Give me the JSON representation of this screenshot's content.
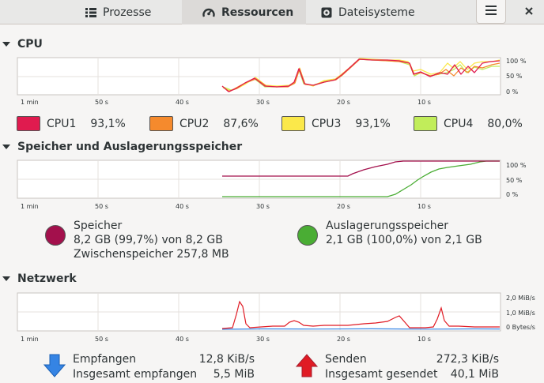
{
  "tabs": [
    {
      "label": "Prozesse",
      "icon": "list-icon",
      "active": false
    },
    {
      "label": "Ressourcen",
      "icon": "gauge-icon",
      "active": true
    },
    {
      "label": "Dateisysteme",
      "icon": "disk-icon",
      "active": false
    }
  ],
  "cpu": {
    "title": "CPU",
    "time_labels": [
      "1 min",
      "50 s",
      "40 s",
      "30 s",
      "20 s",
      "10 s"
    ],
    "y_labels": [
      "100 %",
      "50 %",
      "0 %"
    ],
    "cores": [
      {
        "name": "CPU1",
        "value": "93,1%",
        "color": "#e01b4f"
      },
      {
        "name": "CPU2",
        "value": "87,6%",
        "color": "#f58a2d"
      },
      {
        "name": "CPU3",
        "value": "93,1%",
        "color": "#fbe84a"
      },
      {
        "name": "CPU4",
        "value": "80,0%",
        "color": "#c1ed5a"
      }
    ]
  },
  "memory": {
    "title": "Speicher und Auslagerungsspeicher",
    "time_labels": [
      "1 min",
      "50 s",
      "40 s",
      "30 s",
      "20 s",
      "10 s"
    ],
    "y_labels": [
      "100 %",
      "50 %",
      "0 %"
    ],
    "ram": {
      "label": "Speicher",
      "usage": "8,2 GB (99,7%) von 8,2 GB",
      "cache": "Zwischenspeicher 257,8 MB",
      "color": "#a3104c"
    },
    "swap": {
      "label": "Auslagerungsspeicher",
      "usage": "2,1 GB (100,0%) von 2,1 GB",
      "color": "#4aad34"
    }
  },
  "network": {
    "title": "Netzwerk",
    "time_labels": [
      "1 min",
      "50 s",
      "40 s",
      "30 s",
      "20 s",
      "10 s"
    ],
    "y_labels": [
      "2,0 MiB/s",
      "1,0 MiB/s",
      "0 Bytes/s"
    ],
    "receive": {
      "label": "Empfangen",
      "rate": "12,8 KiB/s",
      "total_label": "Insgesamt empfangen",
      "total": "5,5 MiB",
      "color": "#3584e4"
    },
    "send": {
      "label": "Senden",
      "rate": "272,3 KiB/s",
      "total_label": "Insgesamt gesendet",
      "total": "40,1 MiB",
      "color": "#e01b24"
    }
  }
}
